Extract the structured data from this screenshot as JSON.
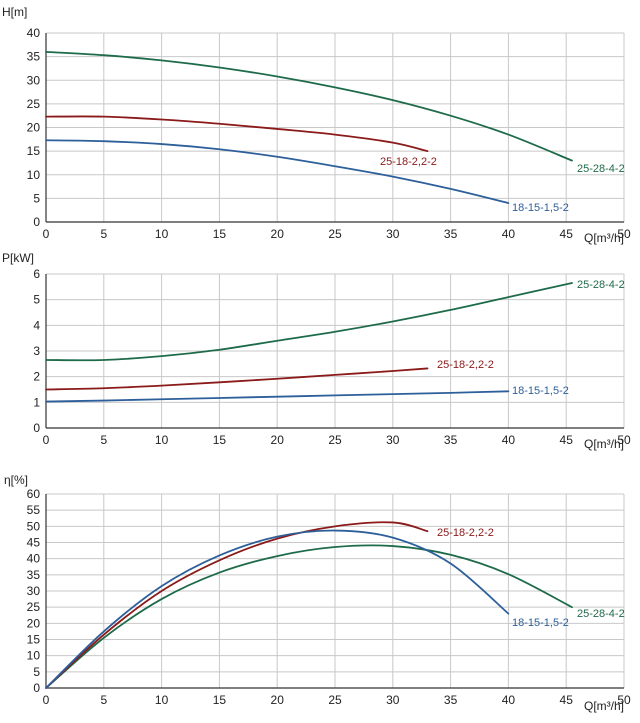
{
  "colors": {
    "18-15-1,5-2": "#2d5f9a",
    "25-18-2,2-2": "#8b1a1a",
    "25-28-4-2": "#1e6b4a",
    "grid": "#c8c8c8",
    "axis": "#333333"
  },
  "chart_data": [
    {
      "type": "line",
      "ylabel": "H[m]",
      "xlabel": "Q[m³/h]",
      "xlim": [
        0,
        50
      ],
      "ylim": [
        0,
        40
      ],
      "xticks": [
        "0",
        "5",
        "10",
        "15",
        "20",
        "25",
        "30",
        "35",
        "40",
        "45",
        "50"
      ],
      "yticks": [
        "0",
        "5",
        "10",
        "15",
        "20",
        "25",
        "30",
        "35",
        "40"
      ],
      "grid": true,
      "series": [
        {
          "name": "25-28-4-2",
          "x": [
            0,
            5,
            10,
            15,
            20,
            25,
            30,
            35,
            40,
            45.5
          ],
          "y": [
            36,
            35.3,
            34.2,
            32.7,
            30.8,
            28.5,
            25.8,
            22.5,
            18.5,
            13
          ]
        },
        {
          "name": "25-18-2,2-2",
          "x": [
            0,
            5,
            10,
            15,
            20,
            25,
            30,
            33
          ],
          "y": [
            22.3,
            22.3,
            21.7,
            20.8,
            19.7,
            18.5,
            16.8,
            15
          ]
        },
        {
          "name": "18-15-1,5-2",
          "x": [
            0,
            5,
            10,
            15,
            20,
            25,
            30,
            35,
            40
          ],
          "y": [
            17.3,
            17.1,
            16.5,
            15.4,
            13.8,
            11.8,
            9.6,
            7,
            4
          ]
        }
      ]
    },
    {
      "type": "line",
      "ylabel": "P[kW]",
      "xlabel": "Q[m³/h]",
      "xlim": [
        0,
        50
      ],
      "ylim": [
        0,
        6
      ],
      "xticks": [
        "0",
        "5",
        "10",
        "15",
        "20",
        "25",
        "30",
        "35",
        "40",
        "45",
        "50"
      ],
      "yticks": [
        "0",
        "1",
        "2",
        "3",
        "4",
        "5",
        "6"
      ],
      "grid": true,
      "series": [
        {
          "name": "25-28-4-2",
          "x": [
            0,
            5,
            10,
            15,
            20,
            25,
            30,
            35,
            40,
            45.5
          ],
          "y": [
            2.65,
            2.65,
            2.8,
            3.05,
            3.4,
            3.75,
            4.15,
            4.6,
            5.1,
            5.65
          ]
        },
        {
          "name": "25-18-2,2-2",
          "x": [
            0,
            5,
            10,
            15,
            20,
            25,
            30,
            33
          ],
          "y": [
            1.5,
            1.55,
            1.65,
            1.78,
            1.92,
            2.07,
            2.22,
            2.32
          ]
        },
        {
          "name": "18-15-1,5-2",
          "x": [
            0,
            5,
            10,
            15,
            20,
            25,
            30,
            35,
            40
          ],
          "y": [
            1.03,
            1.07,
            1.12,
            1.17,
            1.22,
            1.27,
            1.32,
            1.37,
            1.43
          ]
        }
      ]
    },
    {
      "type": "line",
      "ylabel": "η[%]",
      "xlabel": "Q[m³/h]",
      "xlim": [
        0,
        50
      ],
      "ylim": [
        0,
        60
      ],
      "xticks": [
        "0",
        "5",
        "10",
        "15",
        "20",
        "25",
        "30",
        "35",
        "40",
        "45",
        "50"
      ],
      "yticks": [
        "0",
        "5",
        "10",
        "15",
        "20",
        "25",
        "30",
        "35",
        "40",
        "45",
        "50",
        "55",
        "60"
      ],
      "grid": true,
      "series": [
        {
          "name": "25-28-4-2",
          "x": [
            0,
            5,
            10,
            15,
            20,
            25,
            30,
            35,
            40,
            45.5
          ],
          "y": [
            0,
            15.5,
            27.5,
            35.7,
            40.8,
            43.6,
            43.9,
            41.2,
            35.2,
            25
          ]
        },
        {
          "name": "25-18-2,2-2",
          "x": [
            0,
            5,
            10,
            15,
            20,
            25,
            30,
            33
          ],
          "y": [
            0,
            16.5,
            30,
            39.5,
            46.2,
            50,
            51.2,
            48.5
          ]
        },
        {
          "name": "18-15-1,5-2",
          "x": [
            0,
            5,
            10,
            15,
            20,
            25,
            30,
            35,
            40
          ],
          "y": [
            0,
            17.5,
            31.5,
            41,
            46.8,
            48.7,
            46.5,
            38.5,
            23
          ]
        }
      ]
    }
  ]
}
